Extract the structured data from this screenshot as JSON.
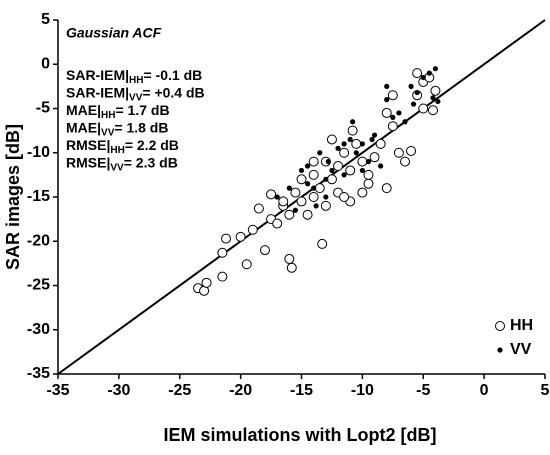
{
  "chart_data": {
    "type": "scatter",
    "title": "Gaussian ACF",
    "x_label": "IEM simulations with Lopt2 [dB]",
    "y_label": "SAR images [dB]",
    "annotations": [
      {
        "text": "SAR-IEM|",
        "sub": "HH",
        "rest": "= -0.1 dB"
      },
      {
        "text": "SAR-IEM|",
        "sub": "VV",
        "rest": "= +0.4 dB"
      },
      {
        "text": "MAE|",
        "sub": "HH",
        "rest": "= 1.7 dB"
      },
      {
        "text": "MAE|",
        "sub": "VV",
        "rest": "= 1.8 dB"
      },
      {
        "text": "RMSE|",
        "sub": "HH",
        "rest": "= 2.2 dB"
      },
      {
        "text": "RMSE|",
        "sub": "VV",
        "rest": "= 2.3 dB"
      }
    ],
    "xlim": [
      -35,
      5
    ],
    "ylim": [
      -35,
      5
    ],
    "xticks": [
      -35,
      -30,
      -25,
      -20,
      -15,
      -10,
      -5,
      0,
      5
    ],
    "yticks": [
      -35,
      -30,
      -25,
      -20,
      -15,
      -10,
      -5,
      0,
      5
    ],
    "legend": "lower right",
    "series": [
      {
        "name": "HH",
        "color": "#000000",
        "marker": "open",
        "x": [
          -23.5,
          -23,
          -22.8,
          -21.5,
          -21.5,
          -21.2,
          -20,
          -19.5,
          -19,
          -18.5,
          -18,
          -17.5,
          -17,
          -16.5,
          -16,
          -15.8,
          -16.5,
          -16,
          -15.5,
          -15,
          -15,
          -14.5,
          -14,
          -14,
          -13.5,
          -13.3,
          -13,
          -13,
          -12.5,
          -12,
          -12,
          -11.5,
          -11,
          -11,
          -10.8,
          -10.5,
          -10,
          -10,
          -9.5,
          -9,
          -8.5,
          -8,
          -8,
          -7.5,
          -7,
          -6.5,
          -6,
          -5.5,
          -5,
          -5,
          -4.5,
          -4.2,
          -4,
          -5.5,
          -7.5,
          -12.5,
          -14,
          -17.5,
          -11.5,
          -9.5
        ],
        "values": [
          -25.3,
          -25.6,
          -24.7,
          -24,
          -21.3,
          -19.7,
          -19.5,
          -22.6,
          -18.7,
          -16.3,
          -21,
          -17.5,
          -18,
          -16,
          -22,
          -23,
          -15.5,
          -17,
          -14.5,
          -15.5,
          -13,
          -17,
          -12.5,
          -15,
          -14,
          -20.3,
          -11,
          -16,
          -13,
          -14.5,
          -11.5,
          -10,
          -12,
          -15.5,
          -7.5,
          -9,
          -14.5,
          -11,
          -13.5,
          -10.5,
          -9,
          -14,
          -5.5,
          -7,
          -10,
          -11,
          -9.8,
          -3.5,
          -5,
          -2,
          -1.5,
          -5.2,
          -3,
          -1,
          -3.5,
          -8.5,
          -11,
          -14.7,
          -15,
          -12.5
        ]
      },
      {
        "name": "VV",
        "color": "#000000",
        "marker": "filled",
        "x": [
          -17,
          -16,
          -15,
          -14.5,
          -14,
          -13.5,
          -13,
          -12,
          -11.5,
          -11,
          -10.5,
          -10,
          -9.5,
          -9,
          -8.5,
          -8,
          -7.5,
          -7,
          -6.5,
          -6,
          -5.5,
          -5,
          -4.5,
          -4,
          -4.2,
          -3.8,
          -5.8,
          -8,
          -10,
          -12.5,
          -13.8,
          -15.5,
          -13,
          -10.8,
          -9.2,
          -11.5,
          -14.5,
          -12.8
        ],
        "values": [
          -15,
          -14,
          -12,
          -13.5,
          -14,
          -10,
          -13,
          -9.5,
          -9,
          -8.5,
          -10,
          -9,
          -11,
          -8,
          -11.5,
          -4,
          -6,
          -5.5,
          -6.5,
          -2.5,
          -3.2,
          -1.5,
          -1,
          -0.5,
          -3.8,
          -4.2,
          -4.5,
          -2.5,
          -12,
          -12,
          -16,
          -16.5,
          -15,
          -6.5,
          -8.5,
          -12.5,
          -11.5,
          -11
        ]
      }
    ]
  }
}
